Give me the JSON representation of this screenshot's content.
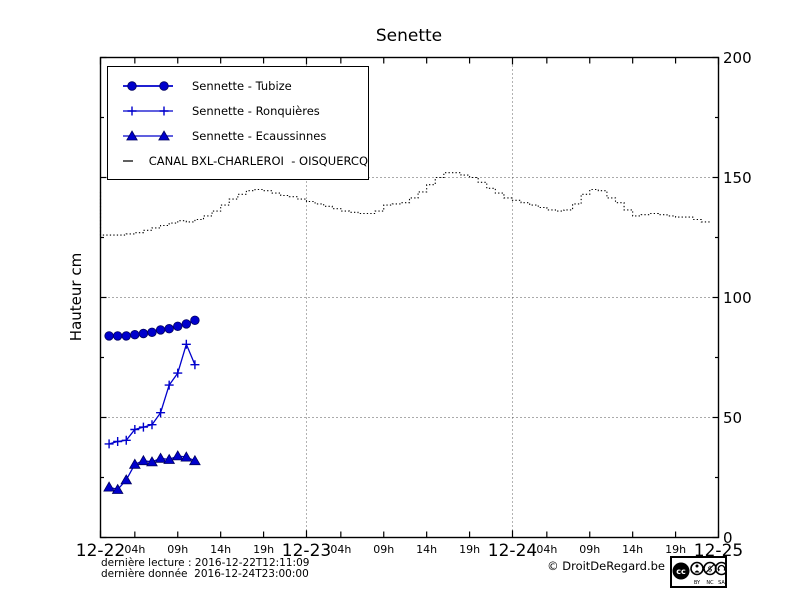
{
  "title": "Senette",
  "ylabel": "Hauteur cm",
  "footer": {
    "last_reading": "dernière lecture : 2016-12-22T12:11:09",
    "last_data": "dernière donnée  2016-12-24T23:00:00",
    "copyright": "© DroitDeRegard.be",
    "license_labels": [
      "BY",
      "NC",
      "SA"
    ]
  },
  "colors": {
    "series_blue": "#0000cc",
    "canal_black": "#000000",
    "grid": "#555555"
  },
  "chart_data": {
    "type": "line",
    "title": "Senette",
    "ylabel": "Hauteur cm",
    "ylim": [
      0,
      200
    ],
    "yticks": [
      0,
      50,
      100,
      150,
      200
    ],
    "yticks_minor": [
      25,
      75,
      125,
      175
    ],
    "xlim_hours": [
      0,
      72
    ],
    "grid": {
      "h_values": [
        50,
        100,
        150
      ],
      "v_hours": [
        24,
        48
      ]
    },
    "legend_position": "upper left",
    "x_day_ticks": [
      {
        "hour": 0,
        "label": "12-22"
      },
      {
        "hour": 24,
        "label": "12-23"
      },
      {
        "hour": 48,
        "label": "12-24"
      },
      {
        "hour": 72,
        "label": "12-25"
      }
    ],
    "x_hour_ticks": [
      {
        "hour": 4,
        "label": "04h"
      },
      {
        "hour": 9,
        "label": "09h"
      },
      {
        "hour": 14,
        "label": "14h"
      },
      {
        "hour": 19,
        "label": "19h"
      },
      {
        "hour": 28,
        "label": "04h"
      },
      {
        "hour": 33,
        "label": "09h"
      },
      {
        "hour": 38,
        "label": "14h"
      },
      {
        "hour": 43,
        "label": "19h"
      },
      {
        "hour": 52,
        "label": "04h"
      },
      {
        "hour": 57,
        "label": "09h"
      },
      {
        "hour": 62,
        "label": "14h"
      },
      {
        "hour": 67,
        "label": "19h"
      }
    ],
    "series": [
      {
        "name": "Sennette - Tubize",
        "marker": "circle",
        "line": "solid",
        "color": "#0000cc",
        "x_hours": [
          1,
          2,
          3,
          4,
          5,
          6,
          7,
          8,
          9,
          10,
          11
        ],
        "values": [
          84,
          84,
          84,
          84.5,
          85,
          85.5,
          86.5,
          87,
          88,
          89,
          90.5
        ]
      },
      {
        "name": "Sennette - Ronquières",
        "marker": "plus",
        "line": "solid",
        "color": "#0000cc",
        "x_hours": [
          1,
          2,
          3,
          4,
          5,
          6,
          7,
          8,
          9,
          10,
          11
        ],
        "values": [
          39,
          40,
          40.5,
          45,
          46,
          47,
          52,
          63.5,
          68.5,
          80.5,
          72
        ]
      },
      {
        "name": "Sennette - Ecaussinnes",
        "marker": "triangle",
        "line": "solid",
        "color": "#0000cc",
        "x_hours": [
          1,
          2,
          3,
          4,
          5,
          6,
          7,
          8,
          9,
          10,
          11
        ],
        "values": [
          21,
          20,
          24,
          30.5,
          32,
          31.5,
          33,
          32.5,
          34,
          33.5,
          32
        ]
      },
      {
        "name": "CANAL BXL-CHARLEROI  - OISQUERCQ",
        "marker": "none",
        "line": "dotted-steps",
        "color": "#000000",
        "x_start_hour": 0,
        "x_step_hours": 1,
        "values": [
          144,
          126,
          126,
          126,
          126.5,
          127,
          128,
          129,
          130,
          131,
          132,
          131.5,
          132.5,
          134,
          136,
          138.5,
          141,
          143,
          144.5,
          145,
          144.5,
          143.5,
          142.5,
          142,
          141,
          140,
          139,
          138,
          137,
          136,
          135.5,
          135,
          135,
          136,
          138.5,
          139,
          139.5,
          141.5,
          144,
          147,
          150,
          152,
          152,
          151,
          150,
          148,
          145.5,
          143.5,
          141.5,
          140.5,
          139.5,
          138.5,
          137.5,
          136.5,
          136,
          136.5,
          139,
          143,
          145,
          144.5,
          141.5,
          139.5,
          136.5,
          134,
          134.5,
          135,
          134.5,
          134,
          133.5,
          133.5,
          132.5,
          131.5
        ]
      }
    ]
  }
}
